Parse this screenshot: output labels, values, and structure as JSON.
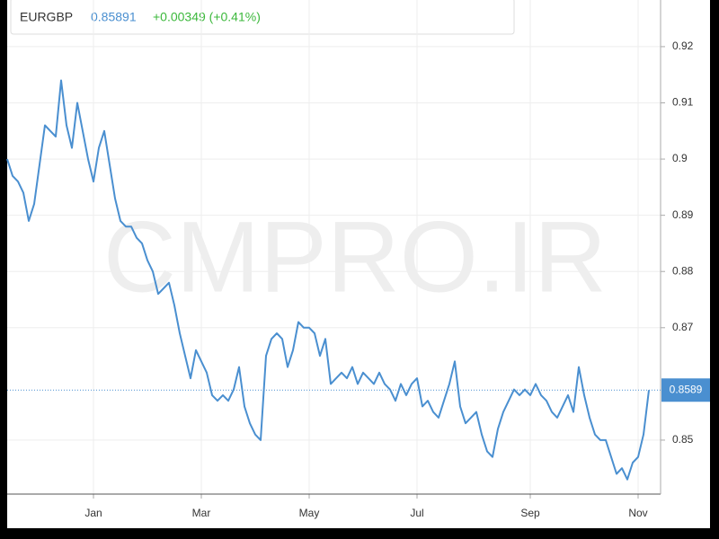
{
  "header": {
    "symbol": "EURGBP",
    "price": 0.85891,
    "change": "+0.00349 (+0.41%)"
  },
  "watermark": "CMPRO.IR",
  "chart_data": {
    "type": "line",
    "categories": [
      null,
      null,
      null,
      null,
      null,
      null,
      null,
      null,
      null,
      null,
      null,
      null,
      null,
      null,
      null,
      null,
      "Jan",
      null,
      null,
      null,
      null,
      null,
      null,
      null,
      null,
      null,
      null,
      null,
      null,
      null,
      null,
      null,
      null,
      null,
      null,
      null,
      "Mar",
      null,
      null,
      null,
      null,
      null,
      null,
      null,
      null,
      null,
      null,
      null,
      null,
      null,
      null,
      null,
      null,
      null,
      null,
      null,
      "May",
      null,
      null,
      null,
      null,
      null,
      null,
      null,
      null,
      null,
      null,
      null,
      null,
      null,
      null,
      null,
      null,
      null,
      null,
      null,
      "Jul",
      null,
      null,
      null,
      null,
      null,
      null,
      null,
      null,
      null,
      null,
      null,
      null,
      null,
      null,
      null,
      null,
      null,
      null,
      null,
      null,
      "Sep",
      null,
      null,
      null,
      null,
      null,
      null,
      null,
      null,
      null,
      null,
      null,
      null,
      null,
      null,
      null,
      null,
      null,
      null,
      null,
      "Nov",
      null,
      null
    ],
    "series": [
      {
        "color": "#4a8fd0",
        "values": [
          0.9,
          0.897,
          0.896,
          0.894,
          0.889,
          0.892,
          0.899,
          0.906,
          0.905,
          0.904,
          0.914,
          0.906,
          0.902,
          0.91,
          0.905,
          0.9,
          0.896,
          0.902,
          0.905,
          0.899,
          0.893,
          0.889,
          0.888,
          0.888,
          0.886,
          0.885,
          0.882,
          0.88,
          0.876,
          0.877,
          0.878,
          0.874,
          0.869,
          0.865,
          0.861,
          0.866,
          0.864,
          0.862,
          0.858,
          0.857,
          0.858,
          0.857,
          0.859,
          0.863,
          0.856,
          0.853,
          0.851,
          0.85,
          0.865,
          0.868,
          0.869,
          0.868,
          0.863,
          0.866,
          0.871,
          0.87,
          0.87,
          0.869,
          0.865,
          0.868,
          0.86,
          0.861,
          0.862,
          0.861,
          0.863,
          0.86,
          0.862,
          0.861,
          0.86,
          0.862,
          0.86,
          0.859,
          0.857,
          0.86,
          0.858,
          0.86,
          0.861,
          0.856,
          0.857,
          0.855,
          0.854,
          0.857,
          0.86,
          0.864,
          0.856,
          0.853,
          0.854,
          0.855,
          0.851,
          0.848,
          0.847,
          0.852,
          0.855,
          0.857,
          0.859,
          0.858,
          0.859,
          0.858,
          0.86,
          0.858,
          0.857,
          0.855,
          0.854,
          0.856,
          0.858,
          0.855,
          0.863,
          0.858,
          0.854,
          0.851,
          0.85,
          0.85,
          0.847,
          0.844,
          0.845,
          0.843,
          0.846,
          0.847,
          0.851,
          0.8589
        ]
      }
    ],
    "last_price": 0.8589,
    "ylim": [
      0.8404,
      0.9267
    ],
    "yticks": [
      0.85,
      0.87,
      0.88,
      0.89,
      0.9,
      0.91,
      0.92
    ],
    "grid": true
  }
}
